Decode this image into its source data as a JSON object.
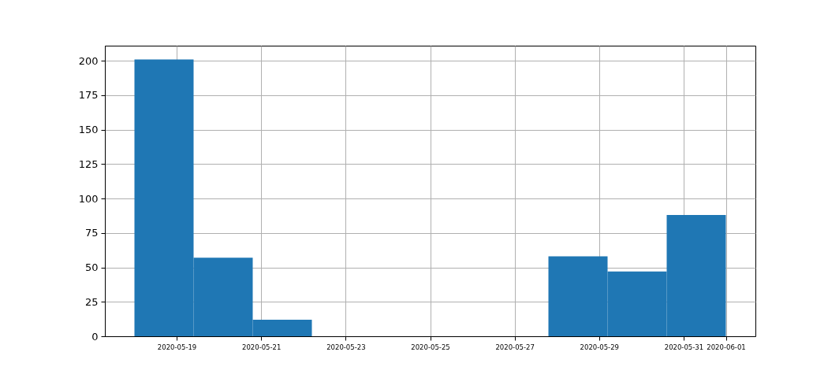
{
  "chart_data": {
    "type": "histogram",
    "color": "#1f77b4",
    "bins": [
      "2020-05-18",
      "2020-05-19T09:36",
      "2020-05-20T19:12",
      "2020-05-22T04:48",
      "2020-05-23T14:24",
      "2020-05-25",
      "2020-05-26T09:36",
      "2020-05-27T19:12",
      "2020-05-29T04:48",
      "2020-05-30T14:24",
      "2020-06-01"
    ],
    "values": [
      201,
      57,
      12,
      0,
      0,
      0,
      0,
      58,
      47,
      88
    ],
    "xlim": [
      "2020-05-17T07:12",
      "2020-06-01T16:48"
    ],
    "xticks": [
      "2020-05-19",
      "2020-05-21",
      "2020-05-23",
      "2020-05-25",
      "2020-05-27",
      "2020-05-29",
      "2020-05-31",
      "2020-06-01"
    ],
    "ylim": [
      0,
      211
    ],
    "yticks": [
      0,
      25,
      50,
      75,
      100,
      125,
      150,
      175,
      200
    ],
    "grid": true
  }
}
